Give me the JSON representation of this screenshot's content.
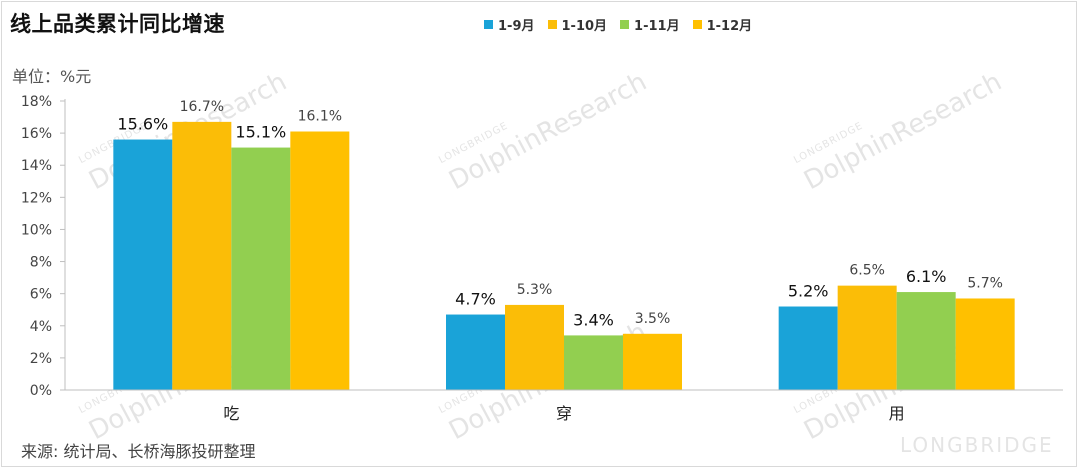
{
  "chart_data": {
    "type": "bar",
    "title": "线上品类累计同比增速",
    "unit_label": "单位：%元",
    "categories": [
      "吃",
      "穿",
      "用"
    ],
    "series": [
      {
        "name": "1-9月",
        "color": "#1aa3d8",
        "values": [
          15.6,
          4.7,
          5.2
        ]
      },
      {
        "name": "1-10月",
        "color": "#fbbd07",
        "values": [
          16.7,
          5.3,
          6.5
        ]
      },
      {
        "name": "1-11月",
        "color": "#92cf50",
        "values": [
          15.1,
          3.4,
          6.1
        ]
      },
      {
        "name": "1-12月",
        "color": "#ffc000",
        "values": [
          16.1,
          3.5,
          5.7
        ]
      }
    ],
    "value_labels": [
      [
        "15.6%",
        "4.7%",
        "5.2%"
      ],
      [
        "16.7%",
        "5.3%",
        "6.5%"
      ],
      [
        "15.1%",
        "3.4%",
        "6.1%"
      ],
      [
        "16.1%",
        "3.5%",
        "5.7%"
      ]
    ],
    "yticks": [
      0,
      2,
      4,
      6,
      8,
      10,
      12,
      14,
      16,
      18
    ],
    "ytick_labels": [
      "0%",
      "2%",
      "4%",
      "6%",
      "8%",
      "10%",
      "12%",
      "14%",
      "16%",
      "18%"
    ],
    "ylim": [
      0,
      18
    ],
    "xlabel": "",
    "ylabel": "",
    "grid": false,
    "legend_position": "top"
  },
  "source": "来源: 统计局、长桥海豚投研整理",
  "watermark": {
    "brand": "DolphinResearch",
    "sub": "LONGBRIDGE",
    "corner": "LONGBRIDGE"
  }
}
